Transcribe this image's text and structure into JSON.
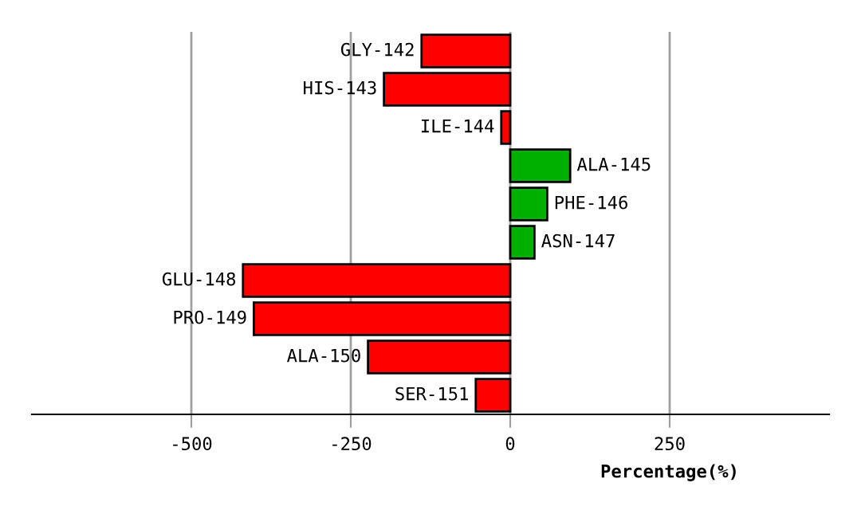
{
  "chart_data": {
    "type": "bar",
    "orientation": "horizontal",
    "xlabel": "Percentage(%)",
    "categories": [
      "GLY-142",
      "HIS-143",
      "ILE-144",
      "ALA-145",
      "PHE-146",
      "ASN-147",
      "GLU-148",
      "PRO-149",
      "ALA-150",
      "SER-151"
    ],
    "values": [
      -139,
      -198,
      -14,
      94,
      58,
      38,
      -419,
      -402,
      -223,
      -54
    ],
    "colors": [
      "#ff0000",
      "#ff0000",
      "#ff0000",
      "#00b000",
      "#00b000",
      "#00b000",
      "#ff0000",
      "#ff0000",
      "#ff0000",
      "#ff0000"
    ],
    "xlim": [
      -750,
      500
    ],
    "xticks": [
      -500,
      -250,
      0,
      250
    ],
    "grid": "x"
  }
}
